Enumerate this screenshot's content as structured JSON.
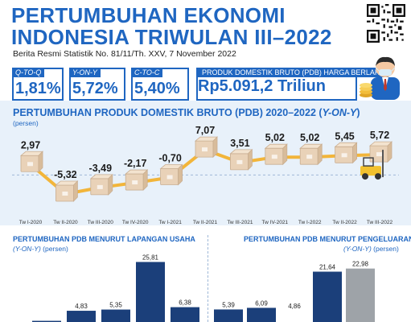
{
  "header": {
    "title_line1": "PERTUMBUHAN EKONOMI",
    "title_line2": "INDONESIA TRIWULAN III–2022",
    "subtitle": "Berita Resmi Statistik No. 81/11/Th. XXV, 7 November 2022"
  },
  "kpis": [
    {
      "label": "Q-TO-Q",
      "value": "1,81%"
    },
    {
      "label": "Y-ON-Y",
      "value": "5,72%"
    },
    {
      "label": "C-TO-C",
      "value": "5,40%"
    }
  ],
  "pdb": {
    "label": "PRODUK DOMESTIK BRUTO (PDB) HARGA BERLAKU",
    "value": "Rp5.091,2 Triliun"
  },
  "colors": {
    "primary": "#1f66c1",
    "navy": "#1b3f7a",
    "band": "#e8f1fa",
    "line": "#f2b53a",
    "box": "#e9d2b8",
    "grey_bar": "#9ea3a8"
  },
  "icons": [
    "qr-code-icon",
    "businessman-icon",
    "coins-icon",
    "forklift-icon",
    "box-icon"
  ],
  "chart_data": [
    {
      "type": "line",
      "title": "PERTUMBUHAN PRODUK DOMESTIK BRUTO (PDB) 2020–2022 (Y-ON-Y)",
      "title_main": "PERTUMBUHAN PRODUK DOMESTIK BRUTO (PDB) 2020–2022 (",
      "title_italic": "Y-ON-Y",
      "title_close": ")",
      "ylabel": "(persen)",
      "categories": [
        "Tw I-2020",
        "Tw II-2020",
        "Tw III-2020",
        "Tw IV-2020",
        "Tw I-2021",
        "Tw II-2021",
        "Tw III-2021",
        "Tw IV-2021",
        "Tw I-2022",
        "Tw II-2022",
        "Tw III-2022"
      ],
      "values": [
        2.97,
        -5.32,
        -3.49,
        -2.17,
        -0.7,
        7.07,
        3.51,
        5.02,
        5.02,
        5.45,
        5.72
      ],
      "value_labels": [
        "2,97",
        "-5,32",
        "-3,49",
        "-2,17",
        "-0,70",
        "7,07",
        "3,51",
        "5,02",
        "5,02",
        "5,45",
        "5,72"
      ],
      "ylim": [
        -6,
        8
      ],
      "grid": false
    },
    {
      "type": "bar",
      "title": "PERTUMBUHAN PDB MENURUT LAPANGAN USAHA",
      "subtitle_italic": "(Y-ON-Y)",
      "subtitle_rest": " (persen)",
      "categories": [
        "",
        "",
        "",
        "",
        ""
      ],
      "values": [
        0.5,
        4.83,
        5.35,
        25.81,
        6.38
      ],
      "value_labels": [
        "",
        "4,83",
        "5,35",
        "25,81",
        "6,38"
      ],
      "ylim": [
        0,
        27
      ]
    },
    {
      "type": "bar",
      "title": "PERTUMBUHAN PDB MENURUT PENGELUARAN",
      "subtitle_italic": "(Y-ON-Y)",
      "subtitle_rest": " (persen)",
      "categories": [
        "",
        "",
        "",
        "",
        ""
      ],
      "values": [
        5.39,
        6.09,
        4.86,
        21.64,
        22.98
      ],
      "value_labels": [
        "5,39",
        "6,09",
        "4,86",
        "21,64",
        "22,98"
      ],
      "ylim": [
        0,
        27
      ]
    }
  ]
}
